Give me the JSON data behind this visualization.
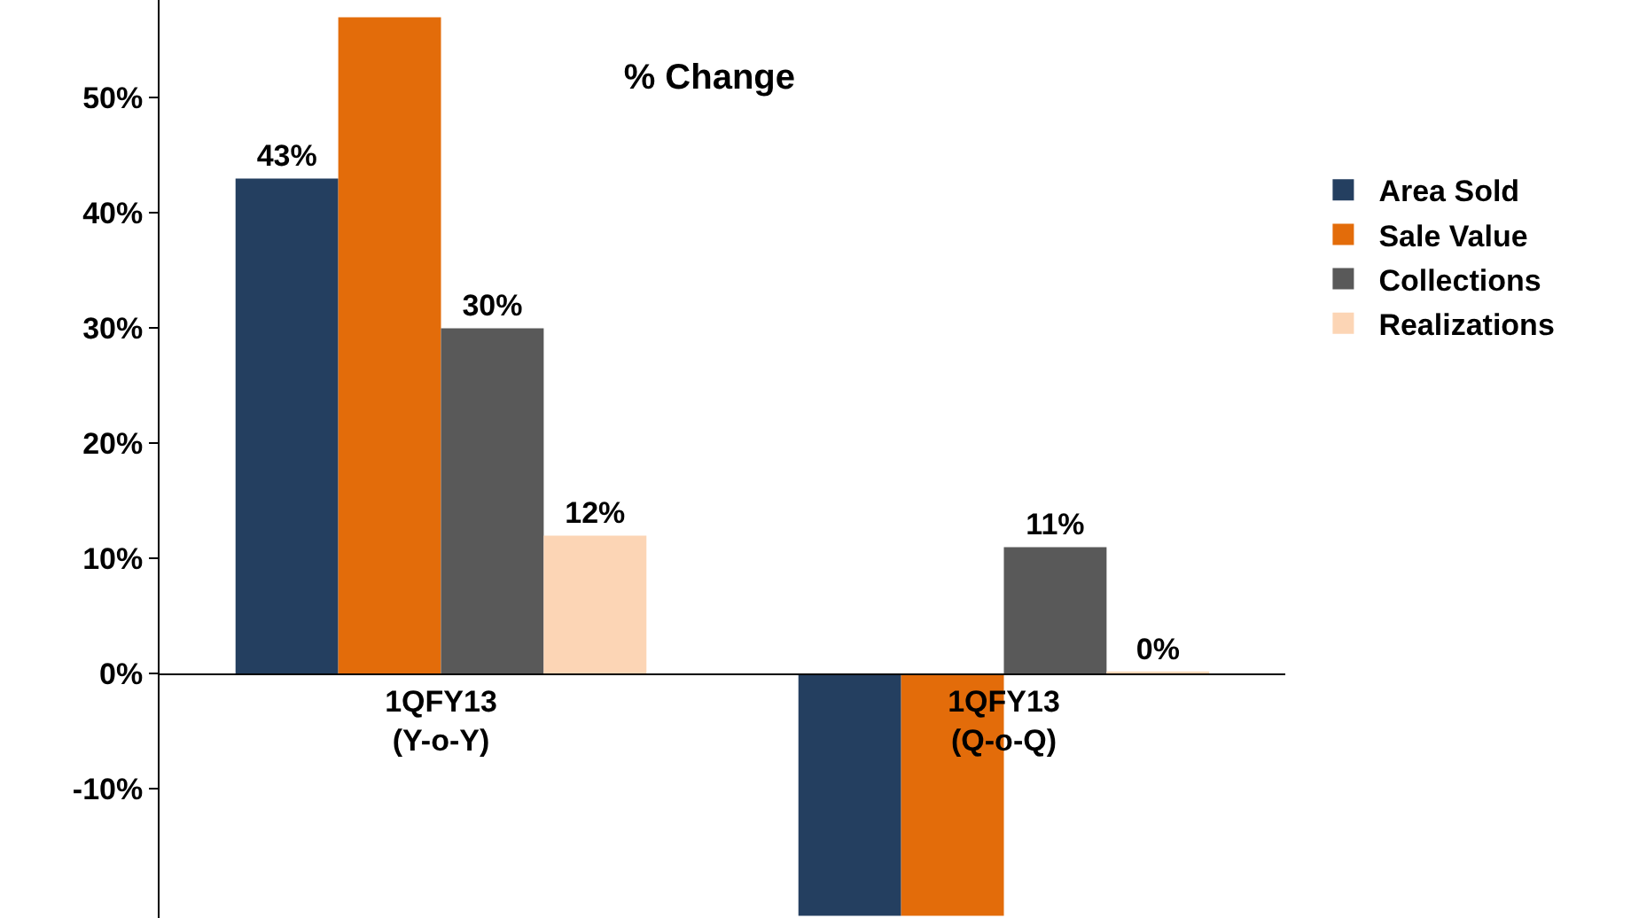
{
  "chart_data": {
    "type": "bar",
    "title": "% Change",
    "categories": [
      "1QFY13\n(Y-o-Y)",
      "1QFY13\n(Q-o-Q)"
    ],
    "series": [
      {
        "name": "Area Sold",
        "color": "#243f60",
        "values": [
          43,
          -21
        ],
        "value_labels": [
          "43%",
          null
        ]
      },
      {
        "name": "Sale Value",
        "color": "#e36c0a",
        "values": [
          57,
          -21
        ],
        "value_labels": [
          null,
          null
        ]
      },
      {
        "name": "Collections",
        "color": "#595959",
        "values": [
          30,
          11
        ],
        "value_labels": [
          "30%",
          "11%"
        ]
      },
      {
        "name": "Realizations",
        "color": "#fcd5b5",
        "values": [
          12,
          0.2
        ],
        "value_labels": [
          "12%",
          "0%"
        ]
      }
    ],
    "ylim": [
      -21.2,
      58.5
    ],
    "yticks": [
      {
        "value": -10,
        "label": "-10%"
      },
      {
        "value": 0,
        "label": "0%"
      },
      {
        "value": 10,
        "label": "10%"
      },
      {
        "value": 20,
        "label": "20%"
      },
      {
        "value": 30,
        "label": "30%"
      },
      {
        "value": 40,
        "label": "40%"
      },
      {
        "value": 50,
        "label": "50%"
      }
    ],
    "legend": "right"
  }
}
